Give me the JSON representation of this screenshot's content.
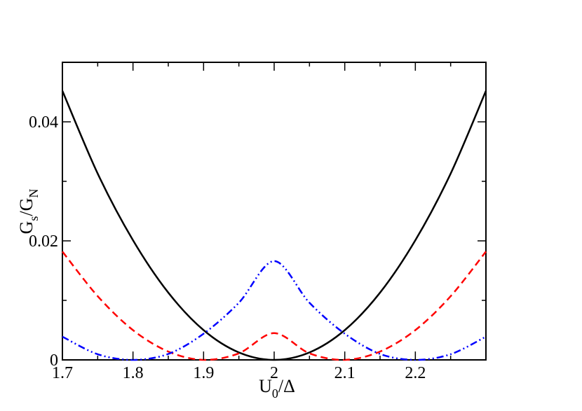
{
  "chart_data": {
    "type": "line",
    "title": "",
    "xlabel": {
      "main": "U",
      "sub": "0",
      "suffix": "/Δ"
    },
    "ylabel": {
      "main": "G",
      "sub1": "s",
      "mid": "/G",
      "sub2": "N"
    },
    "xlim": [
      1.7,
      2.3
    ],
    "ylim": [
      0,
      0.05
    ],
    "x_ticks": [
      1.7,
      1.8,
      1.9,
      2.0,
      2.1,
      2.2
    ],
    "x_tick_labels": [
      "1.7",
      "1.8",
      "1.9",
      "2",
      "2.1",
      "2.2"
    ],
    "y_ticks": [
      0,
      0.02,
      0.04
    ],
    "y_tick_labels": [
      "0",
      "0.02",
      "0.04"
    ],
    "grid": false,
    "legend": "none",
    "series": [
      {
        "style": "solid",
        "color": "#000000",
        "x": [
          1.7,
          1.75,
          1.8,
          1.85,
          1.9,
          1.95,
          2.0,
          2.05,
          2.1,
          2.15,
          2.2,
          2.25,
          2.3
        ],
        "y": [
          0.0452,
          0.0313,
          0.0201,
          0.0113,
          0.005,
          0.00125,
          0.0,
          0.00125,
          0.005,
          0.0113,
          0.0201,
          0.0313,
          0.0452
        ]
      },
      {
        "style": "dashed",
        "color": "#ff0000",
        "x": [
          1.7,
          1.75,
          1.8,
          1.85,
          1.9,
          1.95,
          2.0,
          2.05,
          2.1,
          2.15,
          2.2,
          2.25,
          2.3
        ],
        "y": [
          0.0182,
          0.0107,
          0.005,
          0.0014,
          0.0,
          0.0011,
          0.0045,
          0.0011,
          0.0,
          0.0014,
          0.005,
          0.0107,
          0.0182
        ]
      },
      {
        "style": "dash-dot-dot",
        "color": "#0000ff",
        "x": [
          1.7,
          1.75,
          1.8,
          1.85,
          1.9,
          1.95,
          2.0,
          2.05,
          2.1,
          2.15,
          2.2,
          2.25,
          2.3
        ],
        "y": [
          0.0039,
          0.00095,
          0.0,
          0.001,
          0.0044,
          0.0096,
          0.0166,
          0.0096,
          0.0044,
          0.001,
          0.0,
          0.00095,
          0.0039
        ]
      }
    ]
  }
}
